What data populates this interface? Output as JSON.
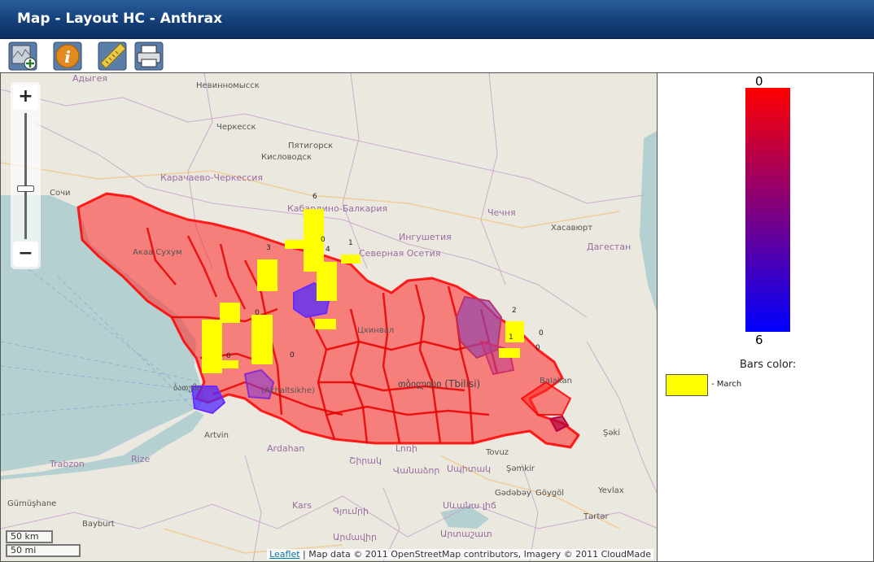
{
  "window": {
    "title": "Map - Layout HC - Anthrax"
  },
  "toolbar": {
    "tools": [
      {
        "icon": "add-layer-icon"
      },
      {
        "icon": "info-icon"
      },
      {
        "icon": "ruler-icon"
      },
      {
        "icon": "print-icon"
      }
    ]
  },
  "map": {
    "zoom_in": "+",
    "zoom_out": "−",
    "scale_km": "50 km",
    "scale_mi": "50 mi",
    "attribution_link": "Leaflet",
    "attribution_text": " | Map data © 2011 OpenStreetMap contributors, Imagery © 2011 CloudMade",
    "labels": {
      "adygea": "Адыгея",
      "nevinnomyssk": "Невинномысск",
      "cherkessk": "Черкесск",
      "pyatigorsk": "Пятигорск",
      "kislovodsk": "Кисловодск",
      "karachay": "Карачаево-Черкессия",
      "sochi": "Сочи",
      "kabardino": "Кабардино-Балкария",
      "chechnya": "Чечня",
      "khasavyurt": "Хасавюрт",
      "ingushetia": "Ингушетия",
      "north_ossetia": "Северная Осетия",
      "dagestan": "Дагестан",
      "sukhumi": "Акаа Сухум",
      "tskhinvali": "Цхинвал",
      "tbilisi": "თბილისი (Tbilisi)",
      "akhaltsikhe": "(Akhaltsikhe)",
      "batumi": "ბათუმი",
      "balakan": "Balakan",
      "artvin": "Artvin",
      "ardahan": "Ardahan",
      "trabzon": "Trabzon",
      "rize": "Rize",
      "gumushane": "Gümüşhane",
      "bayburt": "Bayburt",
      "kars": "Kars",
      "tovuz": "Tovuz",
      "shamkir": "Şəmkir",
      "gadabay": "Gədəbəy",
      "goygol": "Göygöl",
      "yevlax": "Yevlax",
      "tartar": "Tərtər",
      "sheki": "Şəki",
      "gyumri": "Գյումրի",
      "vanadzor": "Վանաձոր",
      "spitak": "Սպիտակ",
      "artashat": "Արտաշատ",
      "lori": "Լոռի",
      "shirak": "Շիրակ",
      "sevan": "Սևանա լիճ",
      "armavir": "Արմավիր"
    },
    "bar_values": [
      "6",
      "0",
      "3",
      "4",
      "1",
      "0",
      "2",
      "1",
      "0",
      "0",
      "0",
      "0"
    ]
  },
  "legend": {
    "gradient_top": "0",
    "gradient_bottom": "6",
    "gradient_colors": [
      "#ff0000",
      "#0000ff"
    ],
    "bars_title": "Bars color:",
    "series": [
      {
        "label": "- March",
        "color": "#ffff00"
      }
    ]
  }
}
